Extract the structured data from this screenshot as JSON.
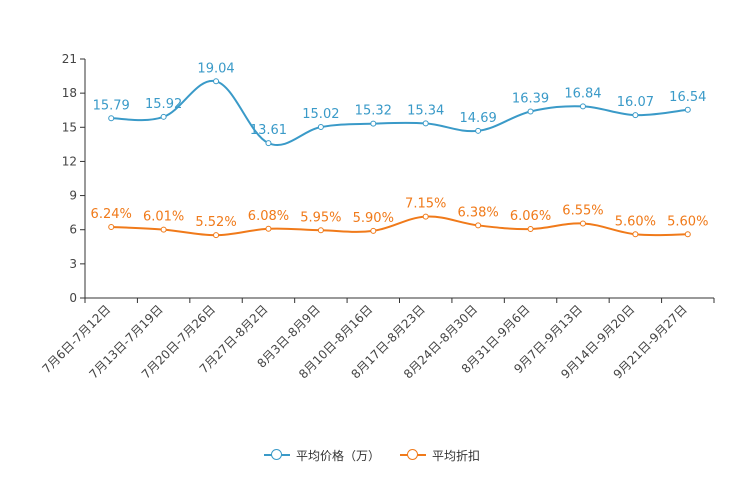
{
  "chart_data": {
    "type": "line",
    "categories": [
      "7月6日-7月12日",
      "7月13日-7月19日",
      "7月20日-7月26日",
      "7月27日-8月2日",
      "8月3日-8月9日",
      "8月10日-8月16日",
      "8月17日-8月23日",
      "8月24日-8月30日",
      "8月31日-9月6日",
      "9月7日-9月13日",
      "9月14日-9月20日",
      "9月21日-9月27日"
    ],
    "y_ticks": [
      "0",
      "3",
      "6",
      "9",
      "12",
      "15",
      "18",
      "21"
    ],
    "ylim": [
      0,
      21
    ],
    "series": [
      {
        "name": "平均价格（万）",
        "color": "#3a9ac8",
        "values": [
          15.79,
          15.92,
          19.04,
          13.61,
          15.02,
          15.32,
          15.34,
          14.69,
          16.39,
          16.84,
          16.07,
          16.54
        ],
        "labels": [
          "15.79",
          "15.92",
          "19.04",
          "13.61",
          "15.02",
          "15.32",
          "15.34",
          "14.69",
          "16.39",
          "16.84",
          "16.07",
          "16.54"
        ]
      },
      {
        "name": "平均折扣",
        "color": "#f07a1a",
        "values": [
          6.24,
          6.01,
          5.52,
          6.08,
          5.95,
          5.9,
          7.15,
          6.38,
          6.06,
          6.55,
          5.6,
          5.6
        ],
        "labels": [
          "6.24%",
          "6.01%",
          "5.52%",
          "6.08%",
          "5.95%",
          "5.90%",
          "7.15%",
          "6.38%",
          "6.06%",
          "6.55%",
          "5.60%",
          "5.60%"
        ]
      }
    ],
    "legend_position": "bottom"
  },
  "legend": {
    "price_label": "平均价格（万）",
    "discount_label": "平均折扣"
  }
}
